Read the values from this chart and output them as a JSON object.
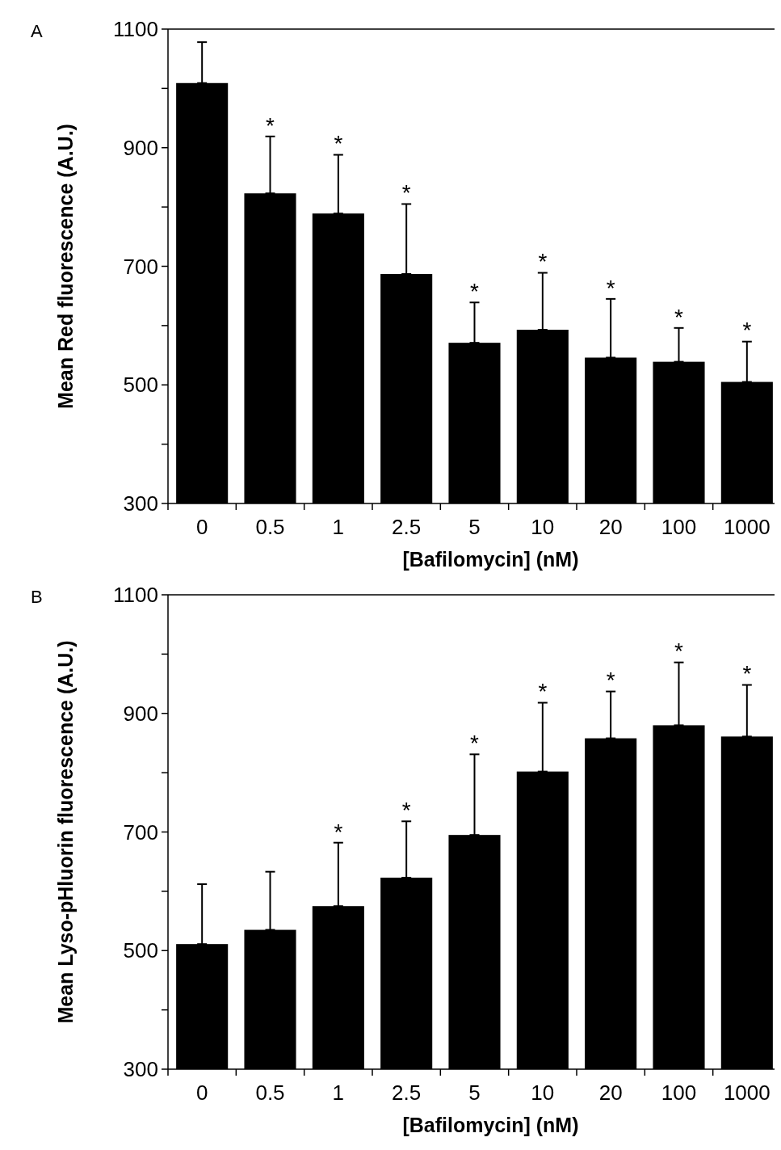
{
  "chart_data": [
    {
      "type": "bar",
      "ylabel": "Mean Red fluorescence (A.U.)",
      "xlabel": "[Bafilomycin] (nM)",
      "categories": [
        "0",
        "0.5",
        "1",
        "2.5",
        "5",
        "10",
        "20",
        "100",
        "1000"
      ],
      "values": [
        1009,
        823,
        789,
        687,
        571,
        593,
        546,
        539,
        505
      ],
      "errors": [
        [
          1009,
          1078
        ],
        [
          823,
          919
        ],
        [
          789,
          888
        ],
        [
          687,
          805
        ],
        [
          571,
          639
        ],
        [
          593,
          689
        ],
        [
          546,
          645
        ],
        [
          539,
          596
        ],
        [
          505,
          573
        ]
      ],
      "color": "#000000",
      "ylim": [
        300,
        1100
      ],
      "yticks": [
        300,
        {
          "value": 400,
          "label": null
        },
        500,
        {
          "value": 600,
          "label": null
        },
        700,
        {
          "value": 800,
          "label": null
        },
        900,
        {
          "value": 1000,
          "label": null
        },
        1100
      ],
      "grid": false,
      "annotations": [
        "A",
        {
          "text": "*",
          "x": "0.5",
          "y": 919
        },
        {
          "text": "*",
          "x": "1",
          "y": 888
        },
        {
          "text": "*",
          "x": "2.5",
          "y": 805
        },
        {
          "text": "*",
          "x": "5",
          "y": 639
        },
        {
          "text": "*",
          "x": "10",
          "y": 689
        },
        {
          "text": "*",
          "x": "20",
          "y": 645
        },
        {
          "text": "*",
          "x": "100",
          "y": 596
        },
        {
          "text": "*",
          "x": "1000",
          "y": 573
        }
      ]
    },
    {
      "type": "bar",
      "ylabel": "Mean Lyso-pHluorin fluorescence (A.U.)",
      "xlabel": "[Bafilomycin] (nM)",
      "categories": [
        "0",
        "0.5",
        "1",
        "2.5",
        "5",
        "10",
        "20",
        "100",
        "1000"
      ],
      "values": [
        511,
        535,
        575,
        623,
        695,
        802,
        858,
        880,
        861
      ],
      "errors": [
        [
          511,
          612
        ],
        [
          535,
          633
        ],
        [
          575,
          682
        ],
        [
          623,
          718
        ],
        [
          695,
          831
        ],
        [
          802,
          918
        ],
        [
          858,
          937
        ],
        [
          880,
          986
        ],
        [
          861,
          948
        ]
      ],
      "color": "#000000",
      "ylim": [
        300,
        1100
      ],
      "yticks": [
        300,
        {
          "value": 400,
          "label": null
        },
        500,
        {
          "value": 600,
          "label": null
        },
        700,
        {
          "value": 800,
          "label": null
        },
        900,
        {
          "value": 1000,
          "label": null
        },
        1100
      ],
      "grid": false,
      "annotations": [
        "B",
        {
          "text": "*",
          "x": "1",
          "y": 682
        },
        {
          "text": "*",
          "x": "2.5",
          "y": 718
        },
        {
          "text": "*",
          "x": "5",
          "y": 831
        },
        {
          "text": "*",
          "x": "10",
          "y": 918
        },
        {
          "text": "*",
          "x": "20",
          "y": 937
        },
        {
          "text": "*",
          "x": "100",
          "y": 986
        },
        {
          "text": "*",
          "x": "1000",
          "y": 948
        }
      ]
    }
  ]
}
